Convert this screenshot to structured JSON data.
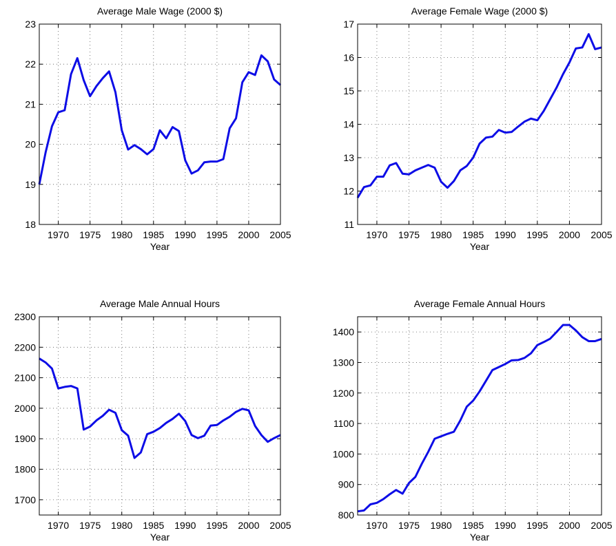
{
  "chart_data": [
    {
      "type": "line",
      "title": "Average Male Wage (2000 $)",
      "xlabel": "Year",
      "x": [
        1967,
        1968,
        1969,
        1970,
        1971,
        1972,
        1973,
        1974,
        1975,
        1976,
        1977,
        1978,
        1979,
        1980,
        1981,
        1982,
        1983,
        1984,
        1985,
        1986,
        1987,
        1988,
        1989,
        1990,
        1991,
        1992,
        1993,
        1994,
        1995,
        1996,
        1997,
        1998,
        1999,
        2000,
        2001,
        2002,
        2003,
        2004,
        2005
      ],
      "series": [
        {
          "color": "#0d0de6",
          "values": [
            19.0,
            19.8,
            20.45,
            20.8,
            20.85,
            21.75,
            22.15,
            21.6,
            21.2,
            21.45,
            21.65,
            21.82,
            21.3,
            20.35,
            19.87,
            19.98,
            19.88,
            19.75,
            19.88,
            20.35,
            20.15,
            20.43,
            20.33,
            19.6,
            19.27,
            19.35,
            19.55,
            19.57,
            19.57,
            19.63,
            20.4,
            20.65,
            21.55,
            21.8,
            21.73,
            22.22,
            22.07,
            21.62,
            21.48
          ]
        }
      ],
      "xlim": [
        1967,
        2005
      ],
      "xticks": [
        1970,
        1975,
        1980,
        1985,
        1990,
        1995,
        2000,
        2005
      ],
      "ylim": [
        18,
        23
      ],
      "yticks": [
        18,
        19,
        20,
        21,
        22,
        23
      ],
      "grid": true
    },
    {
      "type": "line",
      "title": "Average Female Wage (2000 $)",
      "xlabel": "Year",
      "x": [
        1967,
        1968,
        1969,
        1970,
        1971,
        1972,
        1973,
        1974,
        1975,
        1976,
        1977,
        1978,
        1979,
        1980,
        1981,
        1982,
        1983,
        1984,
        1985,
        1986,
        1987,
        1988,
        1989,
        1990,
        1991,
        1992,
        1993,
        1994,
        1995,
        1996,
        1997,
        1998,
        1999,
        2000,
        2001,
        2002,
        2003,
        2004,
        2005
      ],
      "series": [
        {
          "color": "#0d0de6",
          "values": [
            11.8,
            12.12,
            12.17,
            12.43,
            12.43,
            12.77,
            12.84,
            12.52,
            12.5,
            12.62,
            12.7,
            12.78,
            12.7,
            12.28,
            12.1,
            12.3,
            12.62,
            12.75,
            13.0,
            13.42,
            13.6,
            13.63,
            13.83,
            13.75,
            13.77,
            13.93,
            14.08,
            14.17,
            14.12,
            14.4,
            14.75,
            15.1,
            15.5,
            15.85,
            16.27,
            16.3,
            16.7,
            16.25,
            16.3
          ]
        }
      ],
      "xlim": [
        1967,
        2005
      ],
      "xticks": [
        1970,
        1975,
        1980,
        1985,
        1990,
        1995,
        2000,
        2005
      ],
      "ylim": [
        11,
        17
      ],
      "yticks": [
        11,
        12,
        13,
        14,
        15,
        16,
        17
      ],
      "grid": true
    },
    {
      "type": "line",
      "title": "Average Male Annual Hours",
      "xlabel": "Year",
      "x": [
        1967,
        1968,
        1969,
        1970,
        1971,
        1972,
        1973,
        1974,
        1975,
        1976,
        1977,
        1978,
        1979,
        1980,
        1981,
        1982,
        1983,
        1984,
        1985,
        1986,
        1987,
        1988,
        1989,
        1990,
        1991,
        1992,
        1993,
        1994,
        1995,
        1996,
        1997,
        1998,
        1999,
        2000,
        2001,
        2002,
        2003,
        2004,
        2005
      ],
      "series": [
        {
          "color": "#0d0de6",
          "values": [
            2163,
            2150,
            2130,
            2065,
            2070,
            2073,
            2065,
            1930,
            1940,
            1960,
            1975,
            1995,
            1985,
            1928,
            1910,
            1837,
            1855,
            1915,
            1923,
            1935,
            1952,
            1965,
            1982,
            1958,
            1912,
            1902,
            1910,
            1943,
            1945,
            1960,
            1972,
            1988,
            1998,
            1993,
            1942,
            1912,
            1890,
            1902,
            1912
          ]
        }
      ],
      "xlim": [
        1967,
        2005
      ],
      "xticks": [
        1970,
        1975,
        1980,
        1985,
        1990,
        1995,
        2000,
        2005
      ],
      "ylim": [
        1650,
        2300
      ],
      "yticks": [
        1700,
        1800,
        1900,
        2000,
        2100,
        2200,
        2300
      ],
      "grid": true
    },
    {
      "type": "line",
      "title": "Average Female Annual Hours",
      "xlabel": "Year",
      "x": [
        1967,
        1968,
        1969,
        1970,
        1971,
        1972,
        1973,
        1974,
        1975,
        1976,
        1977,
        1978,
        1979,
        1980,
        1981,
        1982,
        1983,
        1984,
        1985,
        1986,
        1987,
        1988,
        1989,
        1990,
        1991,
        1992,
        1993,
        1994,
        1995,
        1996,
        1997,
        1998,
        1999,
        2000,
        2001,
        2002,
        2003,
        2004,
        2005
      ],
      "series": [
        {
          "color": "#0d0de6",
          "values": [
            812,
            815,
            835,
            840,
            852,
            868,
            882,
            870,
            905,
            925,
            968,
            1007,
            1050,
            1058,
            1066,
            1073,
            1110,
            1155,
            1175,
            1205,
            1240,
            1275,
            1285,
            1295,
            1307,
            1308,
            1315,
            1330,
            1357,
            1367,
            1378,
            1400,
            1423,
            1423,
            1405,
            1383,
            1370,
            1370,
            1377
          ]
        }
      ],
      "xlim": [
        1967,
        2005
      ],
      "xticks": [
        1970,
        1975,
        1980,
        1985,
        1990,
        1995,
        2000,
        2005
      ],
      "ylim": [
        800,
        1450
      ],
      "yticks": [
        800,
        900,
        1000,
        1100,
        1200,
        1300,
        1400
      ],
      "grid": true
    }
  ]
}
